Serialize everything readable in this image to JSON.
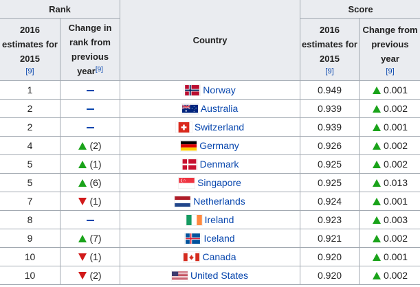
{
  "headers": {
    "rank_group": "Rank",
    "score_group": "Score",
    "country": "Country",
    "rank_2016": [
      "2016",
      "estimates for",
      "2015"
    ],
    "rank_change": [
      "Change in",
      "rank from",
      "previous",
      "year"
    ],
    "score_2016": [
      "2016",
      "estimates for",
      "2015"
    ],
    "score_change": [
      "Change from",
      "previous",
      "year"
    ],
    "citation": "[9]"
  },
  "colors": {
    "up": "#1aa31a",
    "down": "#d11a1a",
    "link": "#0645ad",
    "header_bg": "#eaecf0",
    "border": "#a2a9b1"
  },
  "rows": [
    {
      "rank": "1",
      "rank_change": {
        "dir": "none",
        "amount": ""
      },
      "flag": "norway-flag-icon",
      "country": "Norway",
      "score": "0.949",
      "score_change": {
        "dir": "up",
        "amount": "0.001"
      }
    },
    {
      "rank": "2",
      "rank_change": {
        "dir": "none",
        "amount": ""
      },
      "flag": "australia-flag-icon",
      "country": "Australia",
      "score": "0.939",
      "score_change": {
        "dir": "up",
        "amount": "0.002"
      }
    },
    {
      "rank": "2",
      "rank_change": {
        "dir": "none",
        "amount": ""
      },
      "flag": "switzerland-flag-icon",
      "country": "Switzerland",
      "score": "0.939",
      "score_change": {
        "dir": "up",
        "amount": "0.001"
      }
    },
    {
      "rank": "4",
      "rank_change": {
        "dir": "up",
        "amount": "(2)"
      },
      "flag": "germany-flag-icon",
      "country": "Germany",
      "score": "0.926",
      "score_change": {
        "dir": "up",
        "amount": "0.002"
      }
    },
    {
      "rank": "5",
      "rank_change": {
        "dir": "up",
        "amount": "(1)"
      },
      "flag": "denmark-flag-icon",
      "country": "Denmark",
      "score": "0.925",
      "score_change": {
        "dir": "up",
        "amount": "0.002"
      }
    },
    {
      "rank": "5",
      "rank_change": {
        "dir": "up",
        "amount": "(6)"
      },
      "flag": "singapore-flag-icon",
      "country": "Singapore",
      "score": "0.925",
      "score_change": {
        "dir": "up",
        "amount": "0.013"
      }
    },
    {
      "rank": "7",
      "rank_change": {
        "dir": "down",
        "amount": "(1)"
      },
      "flag": "netherlands-flag-icon",
      "country": "Netherlands",
      "score": "0.924",
      "score_change": {
        "dir": "up",
        "amount": "0.001"
      }
    },
    {
      "rank": "8",
      "rank_change": {
        "dir": "none",
        "amount": ""
      },
      "flag": "ireland-flag-icon",
      "country": "Ireland",
      "score": "0.923",
      "score_change": {
        "dir": "up",
        "amount": "0.003"
      }
    },
    {
      "rank": "9",
      "rank_change": {
        "dir": "up",
        "amount": "(7)"
      },
      "flag": "iceland-flag-icon",
      "country": "Iceland",
      "score": "0.921",
      "score_change": {
        "dir": "up",
        "amount": "0.002"
      }
    },
    {
      "rank": "10",
      "rank_change": {
        "dir": "down",
        "amount": "(1)"
      },
      "flag": "canada-flag-icon",
      "country": "Canada",
      "score": "0.920",
      "score_change": {
        "dir": "up",
        "amount": "0.001"
      }
    },
    {
      "rank": "10",
      "rank_change": {
        "dir": "down",
        "amount": "(2)"
      },
      "flag": "united-states-flag-icon",
      "country": "United States",
      "score": "0.920",
      "score_change": {
        "dir": "up",
        "amount": "0.002"
      }
    }
  ]
}
